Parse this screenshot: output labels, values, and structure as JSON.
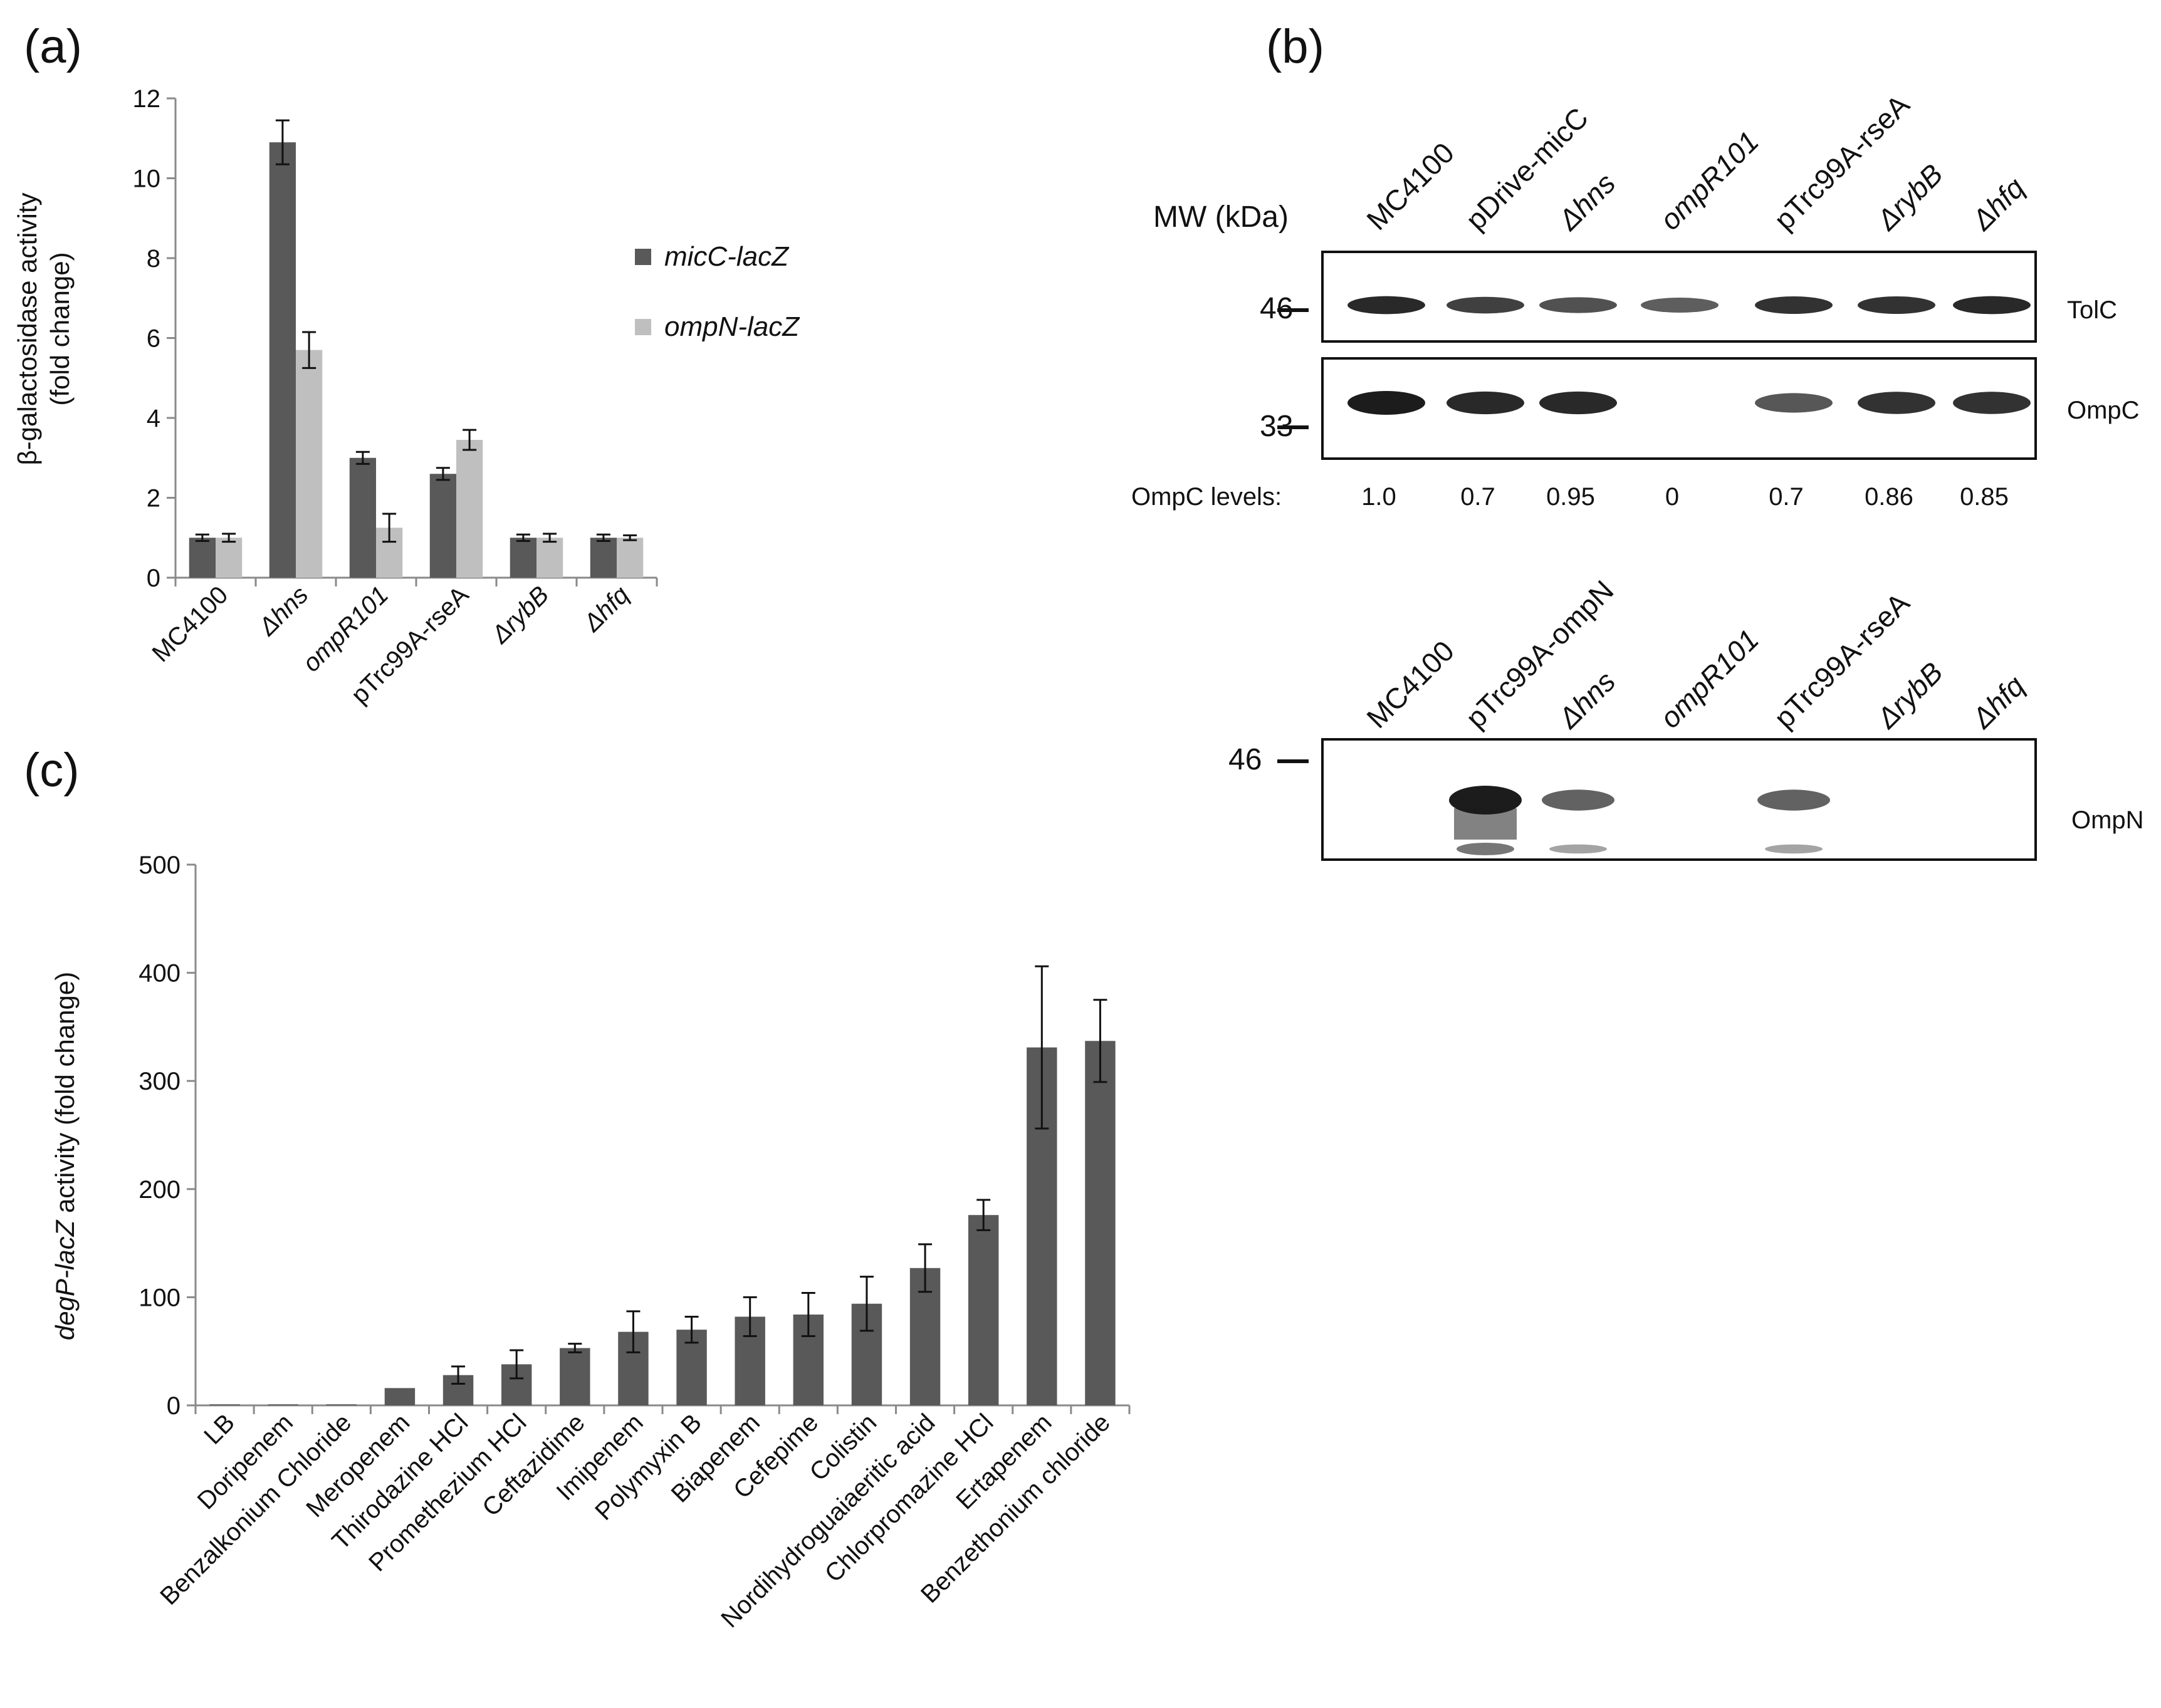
{
  "panels": {
    "a": "(a)",
    "b": "(b)",
    "c": "(c)"
  },
  "colors": {
    "dark": "#595959",
    "light": "#bfbfbf",
    "band": "#1c1c1c",
    "axis": "#8a8a8a"
  },
  "chart_data": [
    {
      "id": "a",
      "type": "bar",
      "title": "",
      "ylabel_lines": [
        "β-galactosidase activity",
        "(fold change)"
      ],
      "xlabel": "",
      "ylim": [
        0,
        12
      ],
      "yticks": [
        0,
        2,
        4,
        6,
        8,
        10,
        12
      ],
      "legend_position": "right",
      "categories": [
        "MC4100",
        "Δhns",
        "ompR101",
        "pTrc99A-rseA",
        "ΔrybB",
        "Δhfq"
      ],
      "series": [
        {
          "name": "micC-lacZ",
          "color": "#595959",
          "values": [
            1.0,
            10.9,
            3.0,
            2.6,
            1.0,
            1.0
          ],
          "errors": [
            0.08,
            0.55,
            0.15,
            0.15,
            0.08,
            0.08
          ]
        },
        {
          "name": "ompN-lacZ",
          "color": "#bfbfbf",
          "values": [
            1.0,
            5.7,
            1.25,
            3.45,
            1.0,
            1.0
          ],
          "errors": [
            0.1,
            0.45,
            0.35,
            0.25,
            0.1,
            0.06
          ]
        }
      ]
    },
    {
      "id": "c",
      "type": "bar",
      "title": "",
      "ylabel_prefix": "degP-lacZ",
      "ylabel_suffix": " activity (fold change)",
      "xlabel": "",
      "ylim": [
        0,
        500
      ],
      "yticks": [
        0,
        100,
        200,
        300,
        400,
        500
      ],
      "categories": [
        "LB",
        "Doripenem",
        "Benzalkonium Chloride",
        "Meropenem",
        "Thirodazine HCl",
        "Promethezium HCl",
        "Ceftazidime",
        "Imipenem",
        "Polymyxin B",
        "Biapenem",
        "Cefepime",
        "Colistin",
        "Nordihydroguaiaeritic acid",
        "Chlorpromazine HCl",
        "Ertapenem",
        "Benzethonium chloride"
      ],
      "series": [
        {
          "name": "degP-lacZ",
          "color": "#595959",
          "values": [
            1,
            1,
            1,
            16,
            28,
            38,
            53,
            68,
            70,
            82,
            84,
            94,
            127,
            176,
            331,
            337
          ],
          "errors": [
            0,
            0,
            0,
            0,
            8,
            13,
            4,
            19,
            12,
            18,
            20,
            25,
            22,
            14,
            75,
            38
          ]
        }
      ]
    }
  ],
  "blot": {
    "mw_header": "MW (kDa)",
    "top_lanes": [
      "MC4100",
      "pDrive-micC",
      "Δhns",
      "ompR101",
      "pTrc99A-rseA",
      "ΔrybB",
      "Δhfq"
    ],
    "top_lanes_italic": [
      false,
      false,
      true,
      true,
      false,
      true,
      true
    ],
    "markers_top": [
      "46",
      "33"
    ],
    "band_labels": [
      "TolC",
      "OmpC"
    ],
    "ompc_levels_label": "OmpC levels:",
    "ompc_levels": [
      "1.0",
      "0.7",
      "0.95",
      "0",
      "0.7",
      "0.86",
      "0.85"
    ],
    "tolc_intensity": [
      0.9,
      0.75,
      0.65,
      0.55,
      0.85,
      0.85,
      0.9
    ],
    "ompc_intensity": [
      1.0,
      0.9,
      0.9,
      0.0,
      0.6,
      0.85,
      0.85
    ],
    "bottom_lanes": [
      "MC4100",
      "pTrc99A-ompN",
      "Δhns",
      "ompR101",
      "pTrc99A-rseA",
      "ΔrybB",
      "Δhfq"
    ],
    "bottom_lanes_italic": [
      false,
      false,
      true,
      true,
      false,
      true,
      true
    ],
    "marker_bottom": "46",
    "bottom_band_label": "OmpN",
    "ompn_intensity": [
      0.0,
      1.0,
      0.55,
      0.0,
      0.55,
      0.0,
      0.0
    ]
  }
}
